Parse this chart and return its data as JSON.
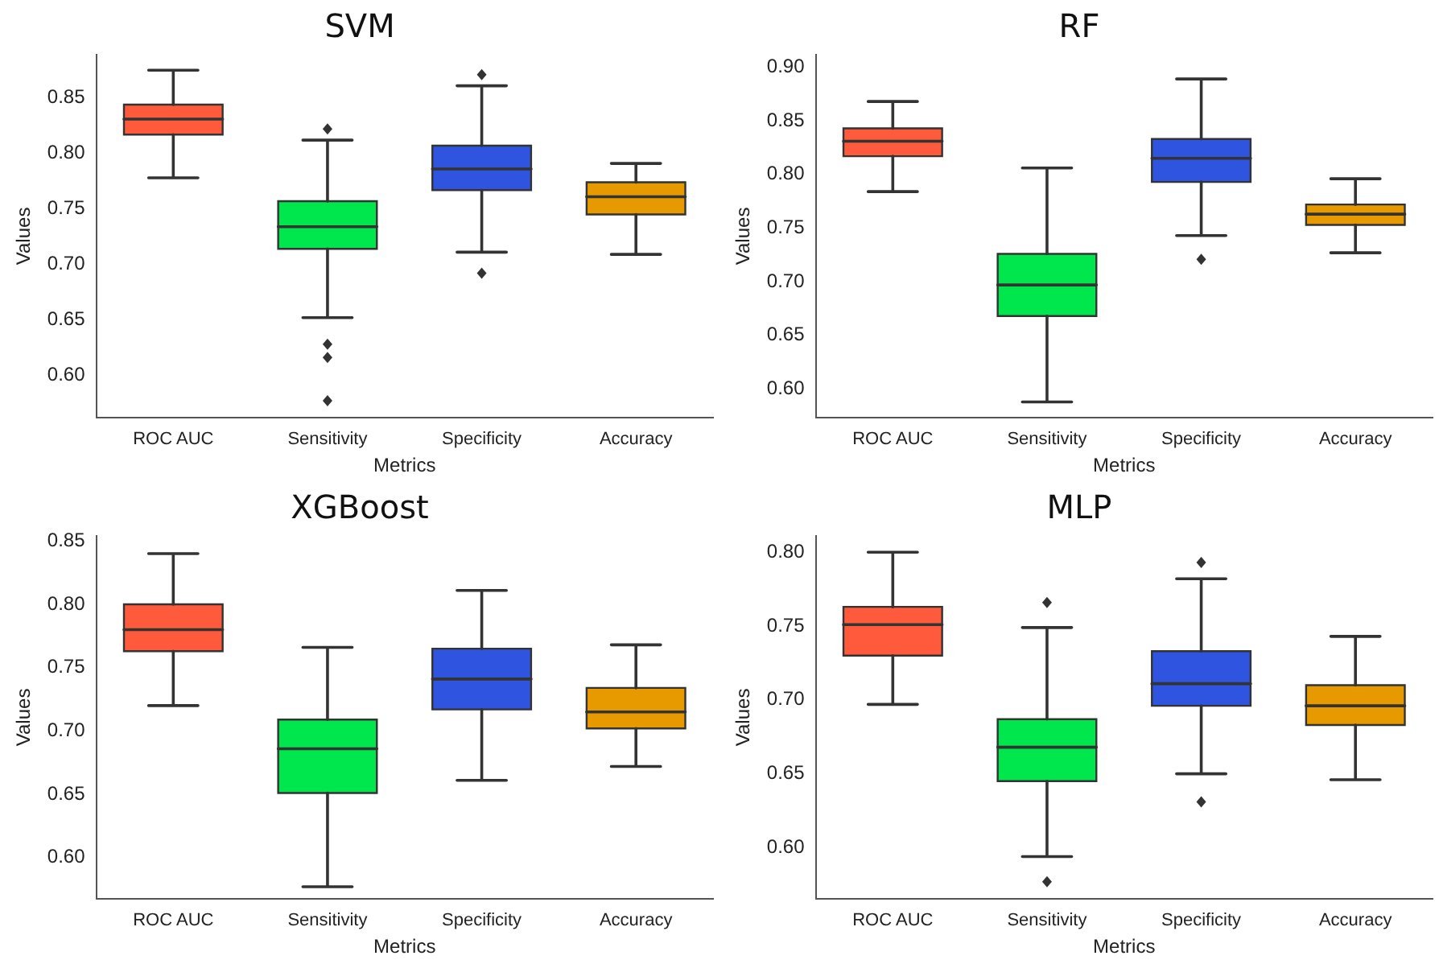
{
  "chart_data": [
    {
      "type": "box",
      "title": "SVM",
      "xlabel": "Metrics",
      "ylabel": "Values",
      "categories": [
        "ROC AUC",
        "Sensitivity",
        "Specificity",
        "Accuracy"
      ],
      "colors": [
        "#ff5a3c",
        "#00e64d",
        "#2f55e0",
        "#e69a00"
      ],
      "grid": false,
      "ylim": [
        0.562,
        0.889
      ],
      "yticks": [
        {
          "value": 0.6,
          "label": "0.60"
        },
        {
          "value": 0.65,
          "label": "0.65"
        },
        {
          "value": 0.7,
          "label": "0.70"
        },
        {
          "value": 0.75,
          "label": "0.75"
        },
        {
          "value": 0.8,
          "label": "0.80"
        },
        {
          "value": 0.85,
          "label": "0.85"
        }
      ],
      "boxes": [
        {
          "low": 0.778,
          "q1": 0.817,
          "median": 0.831,
          "q3": 0.844,
          "high": 0.875
        },
        {
          "low": 0.652,
          "q1": 0.714,
          "median": 0.734,
          "q3": 0.757,
          "high": 0.812,
          "outliers": [
            0.822,
            0.628,
            0.616,
            0.577
          ]
        },
        {
          "low": 0.711,
          "q1": 0.767,
          "median": 0.786,
          "q3": 0.807,
          "high": 0.861,
          "outliers": [
            0.871,
            0.692
          ]
        },
        {
          "low": 0.709,
          "q1": 0.745,
          "median": 0.761,
          "q3": 0.774,
          "high": 0.791
        }
      ]
    },
    {
      "type": "box",
      "title": "RF",
      "xlabel": "Metrics",
      "ylabel": "Values",
      "categories": [
        "ROC AUC",
        "Sensitivity",
        "Specificity",
        "Accuracy"
      ],
      "colors": [
        "#ff5a3c",
        "#00e64d",
        "#2f55e0",
        "#e69a00"
      ],
      "grid": false,
      "ylim": [
        0.5735,
        0.9116
      ],
      "yticks": [
        {
          "value": 0.6,
          "label": "0.60"
        },
        {
          "value": 0.65,
          "label": "0.65"
        },
        {
          "value": 0.7,
          "label": "0.70"
        },
        {
          "value": 0.75,
          "label": "0.75"
        },
        {
          "value": 0.8,
          "label": "0.80"
        },
        {
          "value": 0.85,
          "label": "0.85"
        },
        {
          "value": 0.9,
          "label": "0.90"
        }
      ],
      "boxes": [
        {
          "low": 0.784,
          "q1": 0.817,
          "median": 0.831,
          "q3": 0.843,
          "high": 0.868
        },
        {
          "low": 0.588,
          "q1": 0.668,
          "median": 0.697,
          "q3": 0.726,
          "high": 0.806
        },
        {
          "low": 0.743,
          "q1": 0.793,
          "median": 0.815,
          "q3": 0.833,
          "high": 0.889,
          "outliers": [
            0.721
          ]
        },
        {
          "low": 0.727,
          "q1": 0.753,
          "median": 0.763,
          "q3": 0.772,
          "high": 0.796
        }
      ]
    },
    {
      "type": "box",
      "title": "XGBoost",
      "xlabel": "Metrics",
      "ylabel": "Values",
      "categories": [
        "ROC AUC",
        "Sensitivity",
        "Specificity",
        "Accuracy"
      ],
      "colors": [
        "#ff5a3c",
        "#00e64d",
        "#2f55e0",
        "#e69a00"
      ],
      "grid": false,
      "ylim": [
        0.5676,
        0.854
      ],
      "yticks": [
        {
          "value": 0.6,
          "label": "0.60"
        },
        {
          "value": 0.65,
          "label": "0.65"
        },
        {
          "value": 0.7,
          "label": "0.70"
        },
        {
          "value": 0.75,
          "label": "0.75"
        },
        {
          "value": 0.8,
          "label": "0.80"
        },
        {
          "value": 0.85,
          "label": "0.85"
        }
      ],
      "boxes": [
        {
          "low": 0.72,
          "q1": 0.763,
          "median": 0.78,
          "q3": 0.8,
          "high": 0.84
        },
        {
          "low": 0.577,
          "q1": 0.651,
          "median": 0.686,
          "q3": 0.709,
          "high": 0.766
        },
        {
          "low": 0.661,
          "q1": 0.717,
          "median": 0.741,
          "q3": 0.765,
          "high": 0.811
        },
        {
          "low": 0.672,
          "q1": 0.702,
          "median": 0.715,
          "q3": 0.734,
          "high": 0.768
        }
      ]
    },
    {
      "type": "box",
      "title": "MLP",
      "xlabel": "Metrics",
      "ylabel": "Values",
      "categories": [
        "ROC AUC",
        "Sensitivity",
        "Specificity",
        "Accuracy"
      ],
      "colors": [
        "#ff5a3c",
        "#00e64d",
        "#2f55e0",
        "#e69a00"
      ],
      "grid": false,
      "ylim": [
        0.5655,
        0.811
      ],
      "yticks": [
        {
          "value": 0.6,
          "label": "0.60"
        },
        {
          "value": 0.65,
          "label": "0.65"
        },
        {
          "value": 0.7,
          "label": "0.70"
        },
        {
          "value": 0.75,
          "label": "0.75"
        },
        {
          "value": 0.8,
          "label": "0.80"
        }
      ],
      "boxes": [
        {
          "low": 0.697,
          "q1": 0.73,
          "median": 0.751,
          "q3": 0.763,
          "high": 0.8
        },
        {
          "low": 0.594,
          "q1": 0.645,
          "median": 0.668,
          "q3": 0.687,
          "high": 0.749,
          "outliers": [
            0.766,
            0.577
          ]
        },
        {
          "low": 0.65,
          "q1": 0.696,
          "median": 0.711,
          "q3": 0.733,
          "high": 0.782,
          "outliers": [
            0.793,
            0.631
          ]
        },
        {
          "low": 0.646,
          "q1": 0.683,
          "median": 0.696,
          "q3": 0.71,
          "high": 0.743
        }
      ]
    }
  ]
}
